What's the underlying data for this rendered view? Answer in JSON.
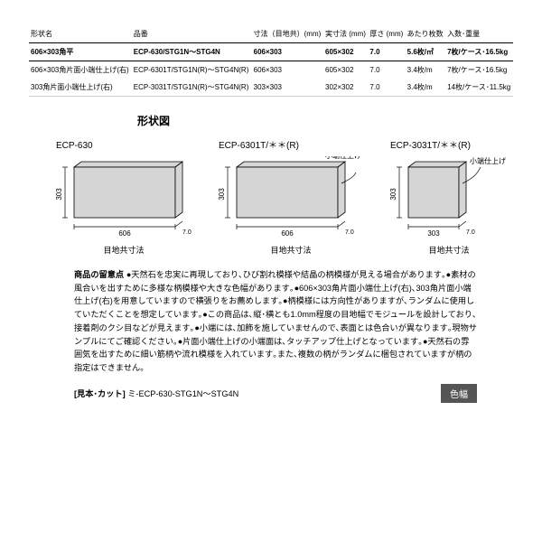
{
  "table": {
    "headers": [
      "形状名",
      "品番",
      "寸法（目地共）(mm)",
      "実寸法 (mm)",
      "厚さ (mm)",
      "あたり枚数",
      "入数･重量"
    ],
    "rows": [
      {
        "bold": true,
        "cells": [
          "606×303角平",
          "ECP-630/STG1N～STG4N",
          "606×303",
          "605×302",
          "7.0",
          "5.6枚/㎡",
          "7枚/ケース･16.5kg"
        ]
      },
      {
        "bold": false,
        "cells": [
          "606×303角片面小端仕上げ(右)",
          "ECP-6301T/STG1N(R)～STG4N(R)",
          "606×303",
          "605×302",
          "7.0",
          "3.4枚/m",
          "7枚/ケース･16.5kg"
        ]
      },
      {
        "bold": false,
        "cells": [
          "303角片面小端仕上げ(右)",
          "ECP-3031T/STG1N(R)～STG4N(R)",
          "303×303",
          "302×302",
          "7.0",
          "3.4枚/m",
          "14枚/ケース･11.5kg"
        ]
      }
    ]
  },
  "section_title": "形状図",
  "diagrams": {
    "d1": {
      "title": "ECP‐630",
      "w": "606",
      "h": "303",
      "t": "7.0",
      "caption": "目地共寸法"
    },
    "d2": {
      "title": "ECP‐6301T/＊＊(R)",
      "w": "606",
      "h": "303",
      "t": "7.0",
      "caption": "目地共寸法",
      "edge": "小端仕上げ"
    },
    "d3": {
      "title": "ECP‐3031T/＊＊(R)",
      "w": "303",
      "h": "303",
      "t": "7.0",
      "caption": "目地共寸法",
      "edge": "小端仕上げ"
    }
  },
  "notes": {
    "title": "商品の留意点",
    "body": "●天然石を忠実に再現しており､ひび割れ模様や結晶の柄模様が見える場合があります｡●素材の風合いを出すために多様な柄模様や大きな色幅があります｡●606×303角片面小端仕上げ(右)､303角片面小端仕上げ(右)を用意していますので横張りをお薦めします｡●柄模様には方向性がありますが､ランダムに使用していただくことを想定しています｡●この商品は､縦･横とも1.0mm程度の目地幅でモジュールを設計しており､接着剤のクシ目などが見えます｡●小端には､加飾を施していませんので､表面とは色合いが異なります｡現物サンプルにてご確認ください｡●片面小端仕上げの小端面は､タッチアップ仕上げとなっています｡●天然石の雰囲気を出すために細い筋柄や流れ模様を入れています｡また､複数の柄がランダムに梱包されていますが柄の指定はできません｡"
  },
  "sample": {
    "label": "[見本･カット]",
    "text": "ミ-ECP-630-STG1N～STG4N"
  },
  "color_badge": "色幅",
  "style": {
    "tile_fill": "#d6d6d6",
    "tile_stroke": "#000",
    "line_stroke": "#000"
  }
}
